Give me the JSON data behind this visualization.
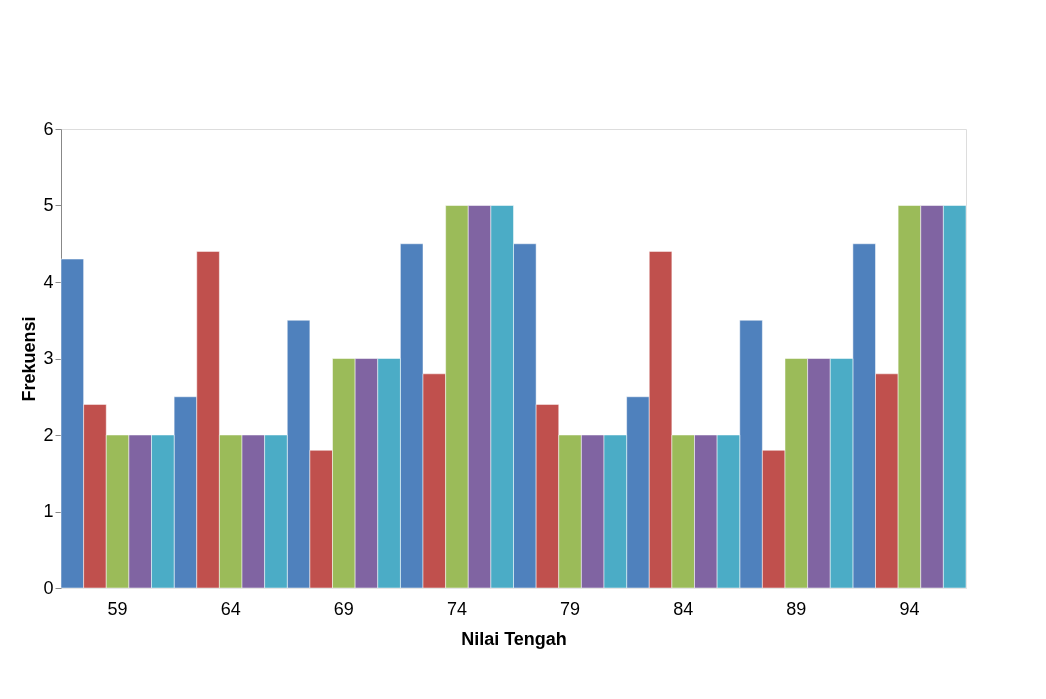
{
  "chart_data": {
    "type": "bar",
    "xlabel": "Nilai Tengah",
    "ylabel": "Frekuensi",
    "categories": [
      "59",
      "64",
      "69",
      "74",
      "79",
      "84",
      "89",
      "94"
    ],
    "series": [
      {
        "color": "#4f81bd",
        "values": [
          4.3,
          2.5,
          3.5,
          4.5,
          4.5,
          2.5,
          3.5,
          4.5
        ]
      },
      {
        "color": "#c0504d",
        "values": [
          2.4,
          4.4,
          1.8,
          2.8,
          2.4,
          4.4,
          1.8,
          2.8
        ]
      },
      {
        "color": "#9bbb59",
        "values": [
          2,
          2,
          3,
          5,
          2,
          2,
          3,
          5
        ]
      },
      {
        "color": "#8064a2",
        "values": [
          2,
          2,
          3,
          5,
          2,
          2,
          3,
          5
        ]
      },
      {
        "color": "#4bacc6",
        "values": [
          2,
          2,
          3,
          5,
          2,
          2,
          3,
          5
        ]
      }
    ],
    "ylim": [
      0,
      6
    ],
    "yticks": [
      0,
      1,
      2,
      3,
      4,
      5,
      6
    ],
    "grid": false,
    "legend": false
  }
}
